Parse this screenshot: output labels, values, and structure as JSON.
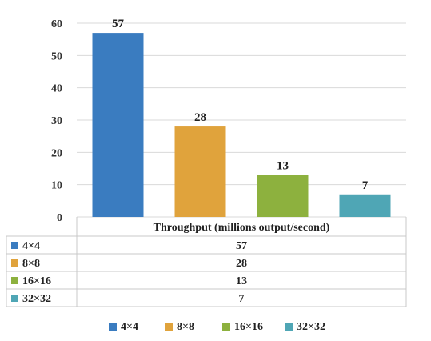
{
  "chart_data": {
    "type": "bar",
    "categories": [
      "4×4",
      "8×8",
      "16×16",
      "32×32"
    ],
    "values": [
      57,
      28,
      13,
      7
    ],
    "data_labels": [
      "57",
      "28",
      "13",
      "7"
    ],
    "colors": [
      "#3A7CC0",
      "#E0A33C",
      "#8DB13E",
      "#4FA6B5"
    ],
    "ylim": [
      0,
      60
    ],
    "yticks": [
      "0",
      "10",
      "20",
      "30",
      "40",
      "50",
      "60"
    ],
    "gridlines": true,
    "legend_position": "bottom",
    "data_table": {
      "header": "Throughput (millions output/second)",
      "rows": [
        {
          "label": "4×4",
          "value": "57"
        },
        {
          "label": "8×8",
          "value": "28"
        },
        {
          "label": "16×16",
          "value": "13"
        },
        {
          "label": "32×32",
          "value": "7"
        }
      ]
    },
    "legend": [
      "4×4",
      "8×8",
      "16×16",
      "32×32"
    ]
  }
}
